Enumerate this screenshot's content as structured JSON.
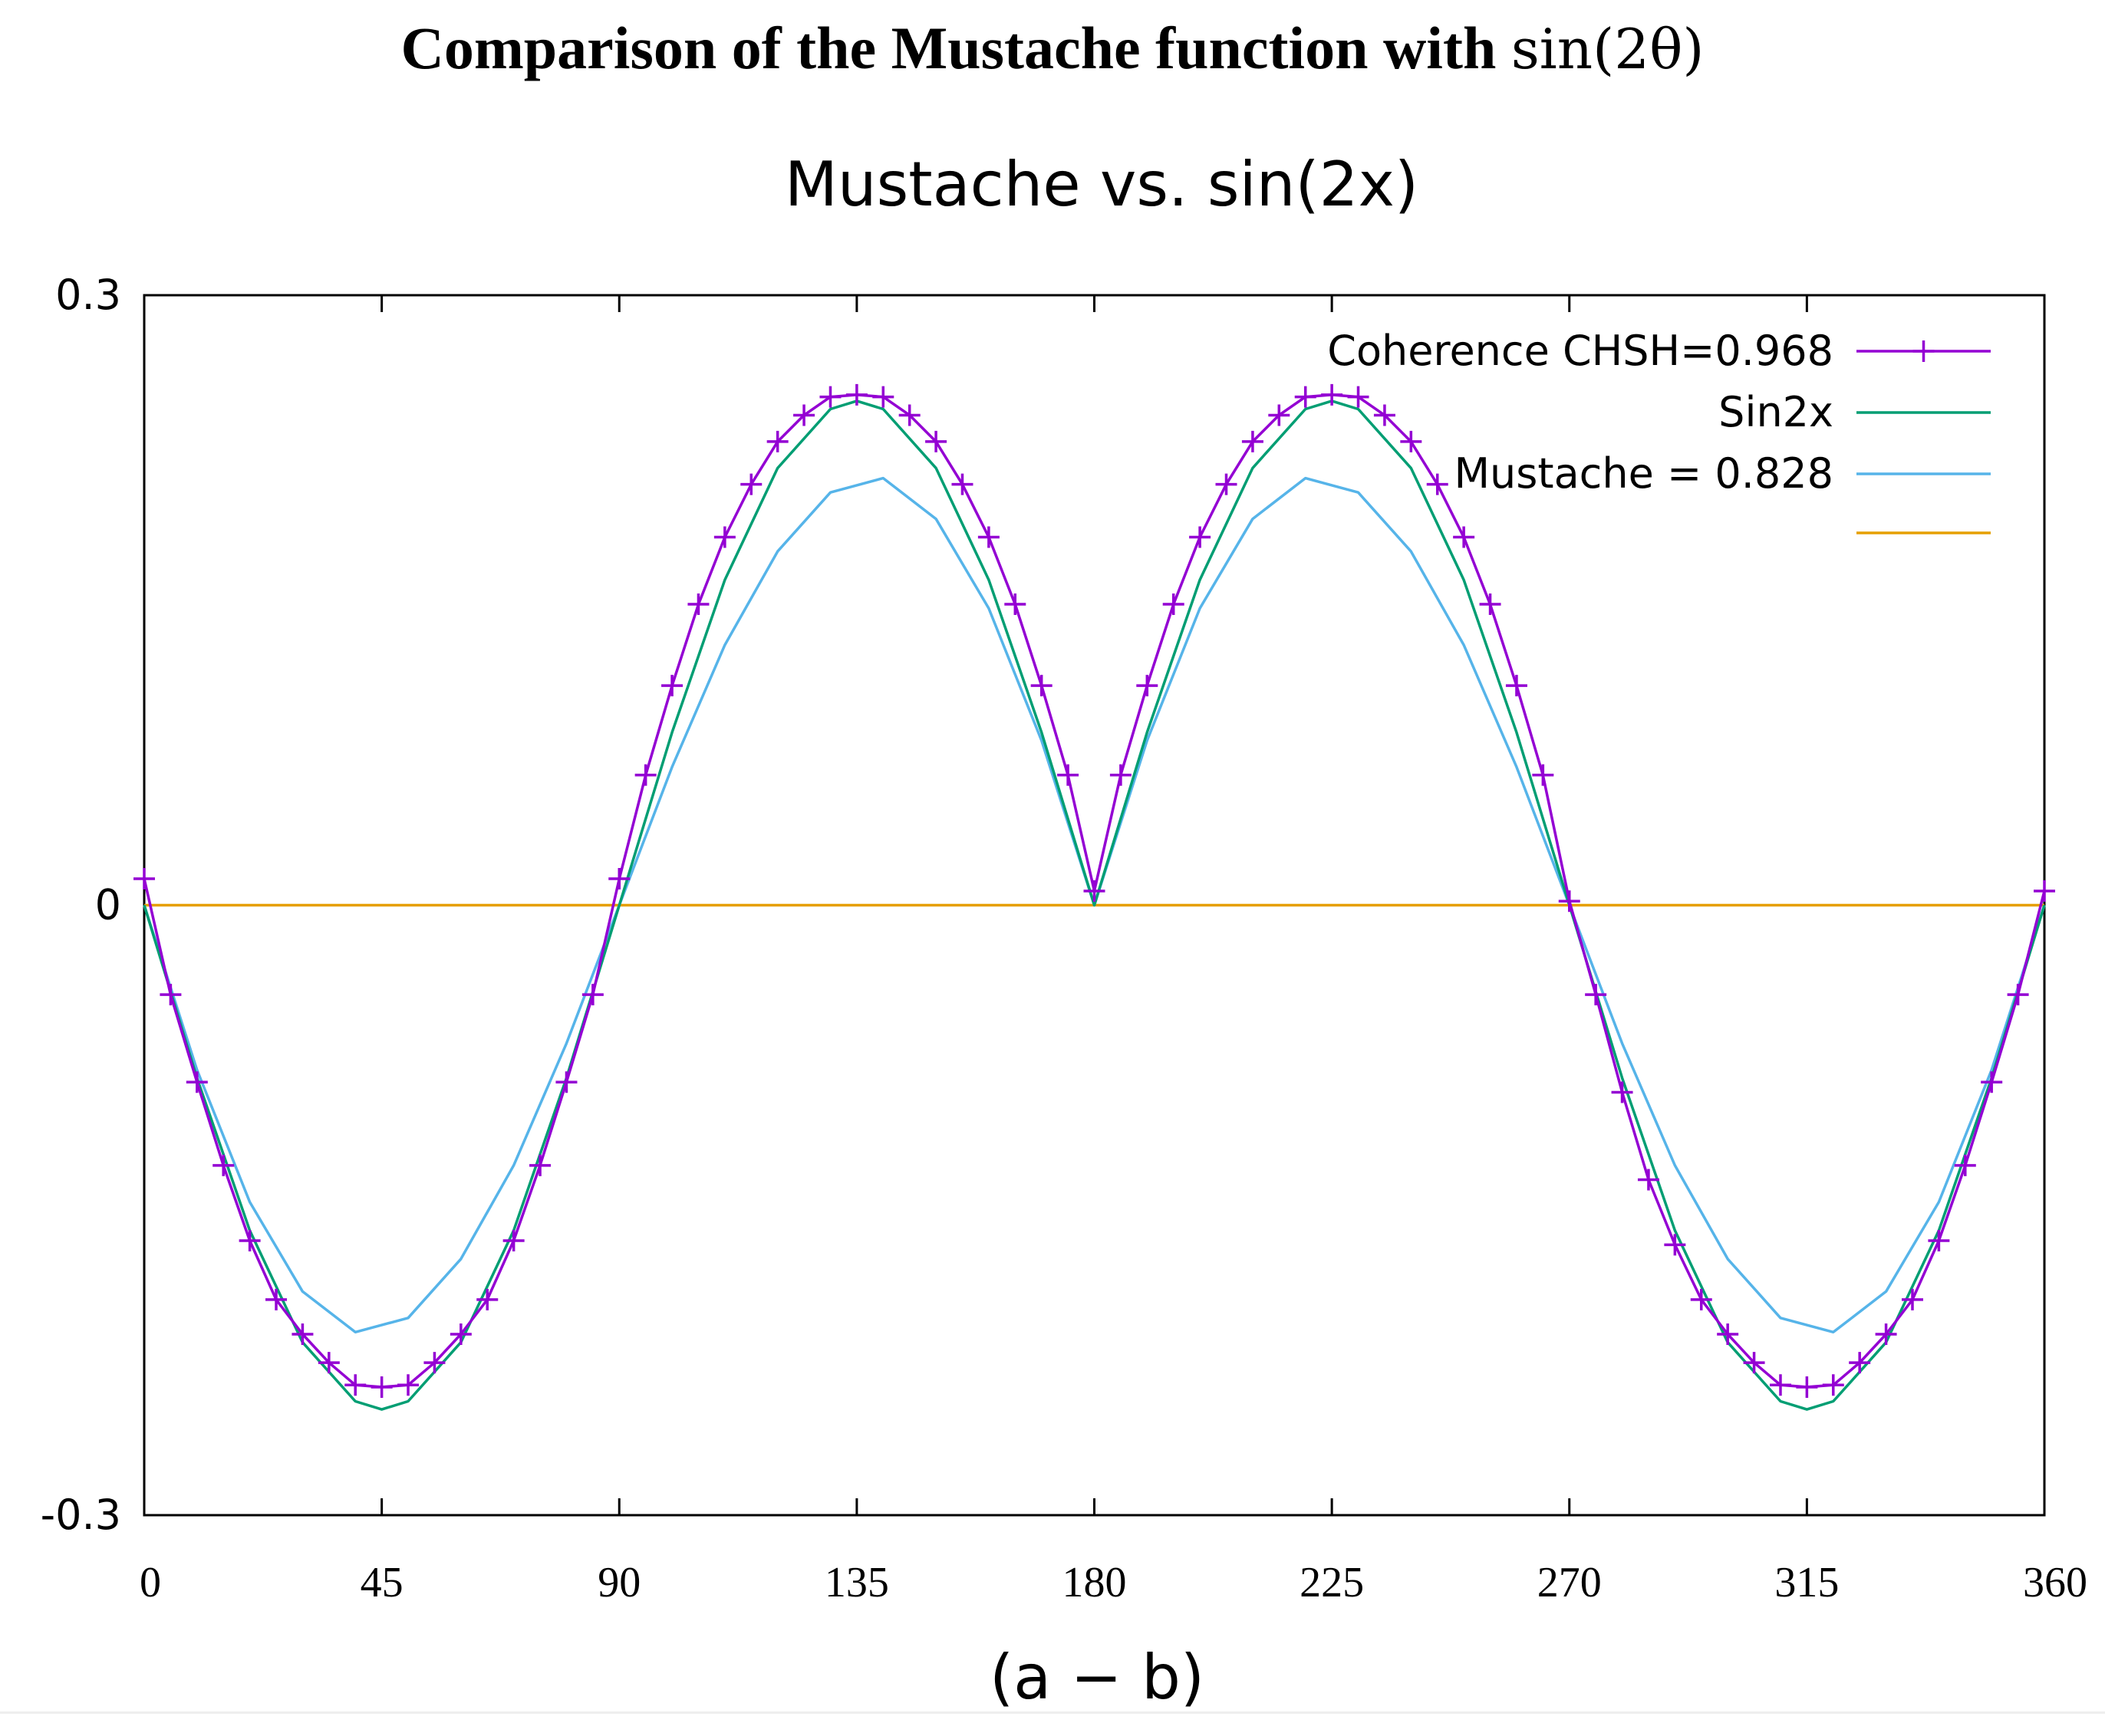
{
  "figure": {
    "title_text": "Comparison of the Mustache function with ",
    "title_math": "sin(2θ)"
  },
  "chart_data": {
    "type": "line",
    "title": "Mustache vs. sin(2x)",
    "xlabel": "(a − b)",
    "ylabel": "",
    "xlim": [
      0,
      360
    ],
    "ylim": [
      -0.3,
      0.3
    ],
    "x_ticks": [
      "0",
      "45",
      "90",
      "135",
      "180",
      "225",
      "270",
      "315",
      "360"
    ],
    "y_ticks": [
      "0.3",
      "0",
      "-0.3"
    ],
    "grid": false,
    "legend_position": "top-right",
    "series": [
      {
        "name": "Coherence CHSH=0.968",
        "color": "#9400d3",
        "marker": "plus",
        "x": [
          0,
          5,
          10,
          15,
          20,
          25,
          30,
          35,
          40,
          45,
          50,
          55,
          60,
          65,
          70,
          75,
          80,
          85,
          90,
          95,
          100,
          105,
          110,
          115,
          120,
          125,
          130,
          135,
          140,
          145,
          150,
          155,
          160,
          165,
          170,
          175,
          180,
          185,
          190,
          195,
          200,
          205,
          210,
          215,
          220,
          225,
          230,
          235,
          240,
          245,
          250,
          255,
          260,
          265,
          270,
          275,
          280,
          285,
          290,
          295,
          300,
          305,
          310,
          315,
          320,
          325,
          330,
          335,
          340,
          345,
          350,
          355,
          360
        ],
        "y": [
          0.013,
          -0.044,
          -0.087,
          -0.128,
          -0.165,
          -0.194,
          -0.211,
          -0.225,
          -0.236,
          -0.237,
          -0.236,
          -0.225,
          -0.211,
          -0.194,
          -0.165,
          -0.128,
          -0.087,
          -0.044,
          0.013,
          0.064,
          0.108,
          0.148,
          0.181,
          0.207,
          0.228,
          0.241,
          0.25,
          0.251,
          0.25,
          0.241,
          0.228,
          0.207,
          0.181,
          0.148,
          0.108,
          0.064,
          0.007,
          0.064,
          0.108,
          0.148,
          0.181,
          0.207,
          0.228,
          0.241,
          0.25,
          0.251,
          0.25,
          0.241,
          0.228,
          0.207,
          0.181,
          0.148,
          0.108,
          0.064,
          0.002,
          -0.044,
          -0.092,
          -0.135,
          -0.167,
          -0.194,
          -0.211,
          -0.225,
          -0.236,
          -0.237,
          -0.236,
          -0.225,
          -0.211,
          -0.194,
          -0.165,
          -0.128,
          -0.087,
          -0.044,
          0.007
        ]
      },
      {
        "name": "Sin2x",
        "color": "#009e73",
        "marker": "none",
        "x": [
          0,
          10,
          20,
          30,
          40,
          45,
          50,
          60,
          70,
          80,
          90,
          100,
          110,
          120,
          130,
          135,
          140,
          150,
          160,
          170,
          180,
          190,
          200,
          210,
          220,
          225,
          230,
          240,
          250,
          260,
          270,
          280,
          290,
          300,
          310,
          315,
          320,
          330,
          340,
          350,
          360
        ],
        "y": [
          0,
          -0.085,
          -0.16,
          -0.215,
          -0.244,
          -0.248,
          -0.244,
          -0.215,
          -0.16,
          -0.085,
          0,
          0.085,
          0.16,
          0.215,
          0.244,
          0.248,
          0.244,
          0.215,
          0.16,
          0.085,
          0,
          0.085,
          0.16,
          0.215,
          0.244,
          0.248,
          0.244,
          0.215,
          0.16,
          0.085,
          0,
          -0.085,
          -0.16,
          -0.215,
          -0.244,
          -0.248,
          -0.244,
          -0.215,
          -0.16,
          -0.085,
          0
        ]
      },
      {
        "name": "Mustache = 0.828",
        "color": "#56b4e9",
        "marker": "none",
        "x": [
          0,
          10,
          20,
          30,
          40,
          50,
          60,
          70,
          80,
          90,
          100,
          110,
          120,
          130,
          140,
          150,
          160,
          170,
          180,
          190,
          200,
          210,
          220,
          230,
          240,
          250,
          260,
          270,
          280,
          290,
          300,
          310,
          320,
          330,
          340,
          350,
          360
        ],
        "y": [
          0,
          -0.081,
          -0.146,
          -0.19,
          -0.21,
          -0.203,
          -0.174,
          -0.128,
          -0.068,
          0,
          0.068,
          0.128,
          0.174,
          0.203,
          0.21,
          0.19,
          0.146,
          0.081,
          0,
          0.081,
          0.146,
          0.19,
          0.21,
          0.203,
          0.174,
          0.128,
          0.068,
          0,
          -0.068,
          -0.128,
          -0.174,
          -0.203,
          -0.21,
          -0.19,
          -0.146,
          -0.081,
          0
        ]
      },
      {
        "name": "",
        "color": "#e69f00",
        "marker": "none",
        "x": [
          0,
          360
        ],
        "y": [
          0,
          0
        ]
      }
    ]
  }
}
